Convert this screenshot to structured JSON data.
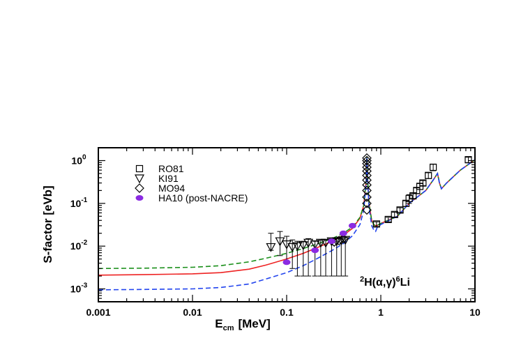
{
  "chart_data": {
    "type": "scatter",
    "xscale": "log",
    "yscale": "log",
    "xlim": [
      0.001,
      10
    ],
    "ylim": [
      0.0005,
      2
    ],
    "xlabel": "E",
    "xlabel_sub": "cm",
    "xlabel_unit": "[MeV]",
    "ylabel": "S-factor [eVb]",
    "xticks": [
      {
        "value": 0.001,
        "label": "0.001"
      },
      {
        "value": 0.01,
        "label": "0.01"
      },
      {
        "value": 0.1,
        "label": "0.1"
      },
      {
        "value": 1,
        "label": "1"
      },
      {
        "value": 10,
        "label": "10"
      }
    ],
    "yticks": [
      {
        "value": 0.001,
        "mant": "10",
        "exp": "-3"
      },
      {
        "value": 0.01,
        "mant": "10",
        "exp": "-2"
      },
      {
        "value": 0.1,
        "mant": "10",
        "exp": "-1"
      },
      {
        "value": 1,
        "mant": "10",
        "exp": "0"
      }
    ],
    "legend_position": "top-left",
    "annotation": {
      "pre1": "2",
      "main1": "H(",
      "alpha": "α",
      "comma": ",",
      "gamma": "γ",
      "main2": ")",
      "pre2": "6",
      "main3": "Li"
    },
    "series": [
      {
        "name": "RO81",
        "marker": "square",
        "color": "#000000",
        "points": [
          [
            0.9,
            0.033
          ],
          [
            1.2,
            0.042
          ],
          [
            1.4,
            0.055
          ],
          [
            1.6,
            0.07
          ],
          [
            1.85,
            0.1
          ],
          [
            2.0,
            0.13
          ],
          [
            2.2,
            0.15
          ],
          [
            2.4,
            0.2
          ],
          [
            2.6,
            0.25
          ],
          [
            2.8,
            0.3
          ],
          [
            3.2,
            0.45
          ],
          [
            3.6,
            0.7
          ],
          [
            8.5,
            1.05
          ]
        ],
        "errors": [
          0.004,
          0.005,
          0.007,
          0.009,
          0.015,
          0.03,
          0.02,
          0.03,
          0.04,
          0.04,
          0.07,
          0.12,
          0.15
        ]
      },
      {
        "name": "KI91",
        "marker": "triangle-down",
        "color": "#000000",
        "points": [
          [
            0.068,
            0.0095
          ],
          [
            0.085,
            0.013
          ],
          [
            0.1,
            0.011
          ],
          [
            0.115,
            0.0095
          ],
          [
            0.13,
            0.01
          ],
          [
            0.15,
            0.0105
          ],
          [
            0.17,
            0.012
          ],
          [
            0.2,
            0.011
          ],
          [
            0.23,
            0.012
          ],
          [
            0.26,
            0.012
          ],
          [
            0.3,
            0.013
          ],
          [
            0.34,
            0.013
          ],
          [
            0.38,
            0.0135
          ],
          [
            0.42,
            0.014
          ]
        ],
        "errors_low": [
          0.008,
          0.006,
          0.004,
          0.003,
          0.002,
          0.002,
          0.002,
          0.002,
          0.002,
          0.002,
          0.002,
          0.002,
          0.002,
          0.002
        ],
        "errors_high": [
          0.02,
          0.022,
          0.017,
          0.014,
          0.013,
          0.013,
          0.015,
          0.013,
          0.014,
          0.014,
          0.015,
          0.015,
          0.015,
          0.016
        ]
      },
      {
        "name": "MO94",
        "marker": "diamond",
        "color": "#000000",
        "points": [
          [
            0.711,
            0.07
          ],
          [
            0.711,
            0.1
          ],
          [
            0.711,
            0.14
          ],
          [
            0.711,
            0.2
          ],
          [
            0.711,
            0.27
          ],
          [
            0.711,
            0.35
          ],
          [
            0.711,
            0.45
          ],
          [
            0.711,
            0.57
          ],
          [
            0.711,
            0.7
          ],
          [
            0.711,
            0.85
          ],
          [
            0.711,
            1.0
          ],
          [
            0.711,
            1.15
          ],
          [
            0.32,
            0.0125
          ],
          [
            0.36,
            0.0135
          ],
          [
            0.4,
            0.015
          ]
        ]
      },
      {
        "name": "HA10 (post-NACRE)",
        "marker": "filled-circle",
        "color": "#8b2be2",
        "points": [
          [
            0.1,
            0.0042
          ],
          [
            0.2,
            0.008
          ],
          [
            0.3,
            0.013
          ],
          [
            0.4,
            0.02
          ],
          [
            0.5,
            0.03
          ]
        ]
      }
    ],
    "curves": [
      {
        "style": "solid",
        "color": "#ee2222",
        "points": [
          [
            0.001,
            0.0021
          ],
          [
            0.003,
            0.00215
          ],
          [
            0.01,
            0.00225
          ],
          [
            0.02,
            0.0024
          ],
          [
            0.04,
            0.0029
          ],
          [
            0.06,
            0.0036
          ],
          [
            0.1,
            0.005
          ],
          [
            0.15,
            0.0068
          ],
          [
            0.2,
            0.0088
          ],
          [
            0.3,
            0.0128
          ],
          [
            0.4,
            0.018
          ],
          [
            0.5,
            0.026
          ],
          [
            0.6,
            0.045
          ],
          [
            0.66,
            0.09
          ],
          [
            0.7,
            0.35
          ],
          [
            0.711,
            1.2
          ],
          [
            0.72,
            0.5
          ],
          [
            0.75,
            0.1
          ],
          [
            0.8,
            0.04
          ],
          [
            0.85,
            0.031
          ],
          [
            0.9,
            0.03
          ],
          [
            1.0,
            0.034
          ],
          [
            1.5,
            0.05
          ],
          [
            2,
            0.1
          ],
          [
            3,
            0.2
          ],
          [
            3.6,
            0.35
          ],
          [
            4.0,
            0.5
          ],
          [
            4.2,
            0.3
          ],
          [
            4.4,
            0.22
          ],
          [
            5,
            0.3
          ],
          [
            7,
            0.6
          ],
          [
            10,
            1.05
          ]
        ]
      },
      {
        "style": "dashed",
        "color": "#1a8f1a",
        "points": [
          [
            0.001,
            0.003
          ],
          [
            0.003,
            0.00305
          ],
          [
            0.01,
            0.0032
          ],
          [
            0.02,
            0.0035
          ],
          [
            0.04,
            0.0043
          ],
          [
            0.06,
            0.0052
          ],
          [
            0.1,
            0.0068
          ],
          [
            0.15,
            0.0088
          ],
          [
            0.2,
            0.0108
          ],
          [
            0.3,
            0.0148
          ],
          [
            0.4,
            0.02
          ],
          [
            0.5,
            0.028
          ],
          [
            0.6,
            0.047
          ],
          [
            0.66,
            0.09
          ],
          [
            0.7,
            0.35
          ],
          [
            0.711,
            1.2
          ],
          [
            0.72,
            0.5
          ],
          [
            0.75,
            0.1
          ],
          [
            0.8,
            0.04
          ],
          [
            0.85,
            0.031
          ],
          [
            0.9,
            0.03
          ],
          [
            1.0,
            0.034
          ],
          [
            1.5,
            0.05
          ],
          [
            2,
            0.1
          ],
          [
            3,
            0.2
          ],
          [
            3.6,
            0.35
          ],
          [
            4.0,
            0.5
          ],
          [
            4.2,
            0.3
          ],
          [
            4.4,
            0.22
          ],
          [
            5,
            0.3
          ],
          [
            7,
            0.6
          ],
          [
            10,
            1.05
          ]
        ]
      },
      {
        "style": "dashed",
        "color": "#2244ee",
        "points": [
          [
            0.001,
            0.00095
          ],
          [
            0.003,
            0.00097
          ],
          [
            0.01,
            0.001
          ],
          [
            0.02,
            0.00108
          ],
          [
            0.04,
            0.0013
          ],
          [
            0.06,
            0.0017
          ],
          [
            0.1,
            0.0024
          ],
          [
            0.15,
            0.0035
          ],
          [
            0.2,
            0.0048
          ],
          [
            0.3,
            0.0078
          ],
          [
            0.4,
            0.0115
          ],
          [
            0.5,
            0.0175
          ],
          [
            0.6,
            0.032
          ],
          [
            0.66,
            0.07
          ],
          [
            0.7,
            0.3
          ],
          [
            0.711,
            1.15
          ],
          [
            0.72,
            0.5
          ],
          [
            0.75,
            0.08
          ],
          [
            0.8,
            0.03
          ],
          [
            0.85,
            0.023
          ],
          [
            0.88,
            0.022
          ],
          [
            0.92,
            0.028
          ],
          [
            1.0,
            0.032
          ],
          [
            1.5,
            0.05
          ],
          [
            2,
            0.1
          ],
          [
            3,
            0.2
          ],
          [
            3.6,
            0.35
          ],
          [
            4.0,
            0.5
          ],
          [
            4.2,
            0.3
          ],
          [
            4.4,
            0.22
          ],
          [
            5,
            0.3
          ],
          [
            7,
            0.6
          ],
          [
            10,
            1.05
          ]
        ]
      }
    ]
  }
}
